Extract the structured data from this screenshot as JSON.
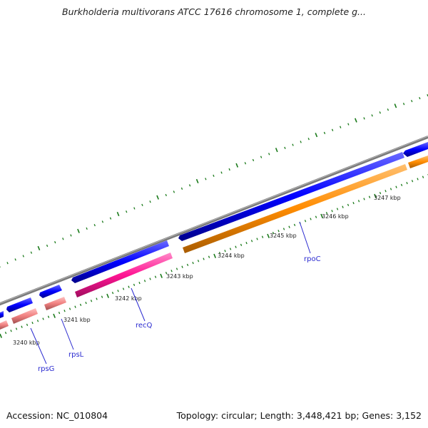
{
  "title": "Burkholderia multivorans ATCC 17616 chromosome 1, complete g...",
  "footer": {
    "accession": "Accession: NC_010804",
    "summary": "Topology: circular; Length: 3,448,421 bp; Genes: 3,152"
  },
  "scale_labels": [
    "3240 kbp",
    "3241 kbp",
    "3242 kbp",
    "3243 kbp",
    "3244 kbp",
    "3245 kbp",
    "3246 kbp",
    "3247 kbp"
  ],
  "genes": [
    {
      "name": "rpsG",
      "strand": "forward-outer",
      "color": "#f08080",
      "label_shown": true
    },
    {
      "name": "rpsL",
      "strand": "forward-outer",
      "color": "#f08080",
      "label_shown": true
    },
    {
      "name": "recQ",
      "strand": "forward-outer",
      "color": "#ff1493",
      "label_shown": true
    },
    {
      "name": "rpoC",
      "strand": "forward-outer",
      "color": "#ff8c00",
      "label_shown": true
    }
  ],
  "colors": {
    "cds_blue": "#0000ff",
    "rpoC_orange": "#ff8c00",
    "recQ_pink": "#ff1493",
    "rps_salmon": "#f08080",
    "backbone": "#808080",
    "tick_green": "#1a7a1a",
    "label_blue": "#2a2ad0"
  }
}
